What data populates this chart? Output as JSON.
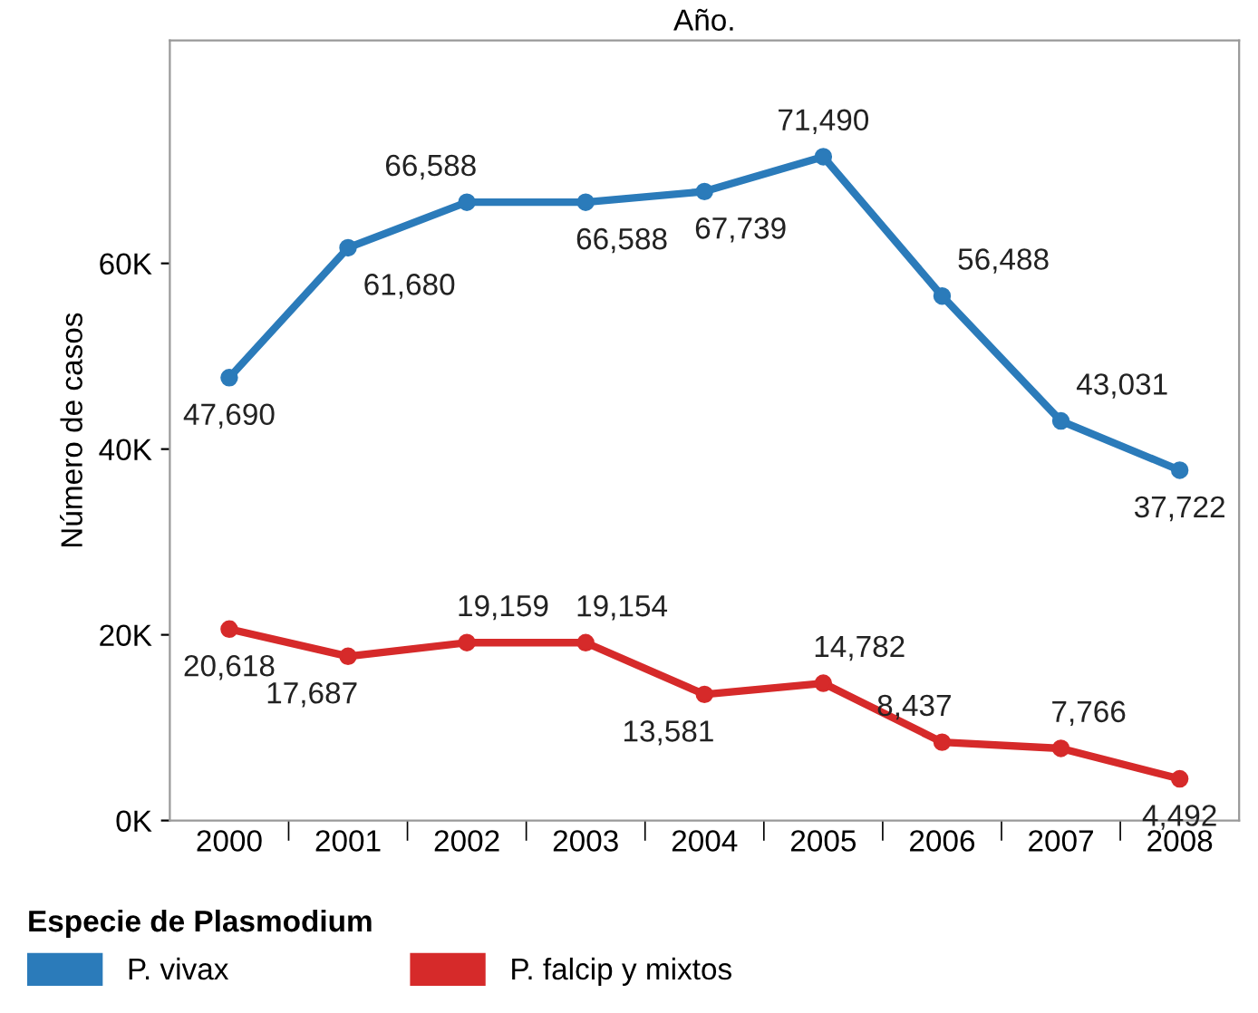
{
  "chart_data": {
    "type": "line",
    "xlabel": "Año.",
    "ylabel": "Número de casos",
    "legend_title": "Especie de Plasmodium",
    "categories": [
      "2000",
      "2001",
      "2002",
      "2003",
      "2004",
      "2005",
      "2006",
      "2007",
      "2008"
    ],
    "series": [
      {
        "name": "P. vivax",
        "color": "#2b7bba",
        "values": [
          47690,
          61680,
          66588,
          66588,
          67739,
          71490,
          56488,
          43031,
          37722
        ],
        "value_labels": [
          "47,690",
          "61,680",
          "66,588",
          "66,588",
          "67,739",
          "71,490",
          "56,488",
          "43,031",
          "37,722"
        ]
      },
      {
        "name": "P. falcip y mixtos",
        "color": "#d62a2a",
        "values": [
          20618,
          17687,
          19159,
          19154,
          13581,
          14782,
          8437,
          7766,
          4492
        ],
        "value_labels": [
          "20,618",
          "17,687",
          "19,159",
          "19,154",
          "13,581",
          "14,782",
          "8,437",
          "7,766",
          "4,492"
        ]
      }
    ],
    "ylim": [
      0,
      84000
    ],
    "yticks": [
      {
        "value": 0,
        "label": "0K"
      },
      {
        "value": 20000,
        "label": "20K"
      },
      {
        "value": 40000,
        "label": "40K"
      },
      {
        "value": 60000,
        "label": "60K"
      }
    ],
    "marker": "circle",
    "line_style": "solid",
    "grid": false,
    "legend": "bottom"
  }
}
